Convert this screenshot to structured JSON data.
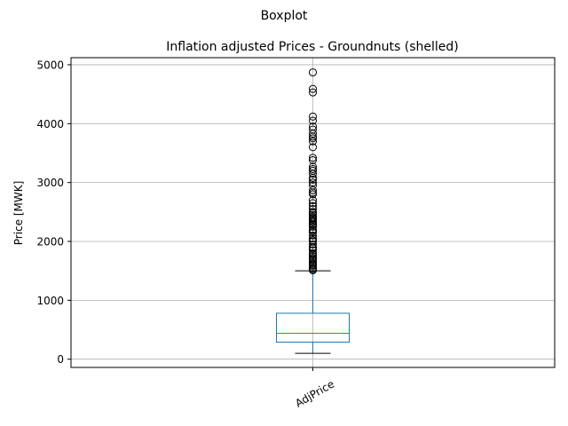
{
  "chart_data": {
    "type": "box",
    "suptitle": "Boxplot",
    "title": "Inflation adjusted Prices - Groundnuts (shelled)",
    "xlabel": "",
    "ylabel": "Price [MWK]",
    "categories": [
      "AdjPrice"
    ],
    "ylim": [
      -140,
      5120
    ],
    "yticks": [
      0,
      1000,
      2000,
      3000,
      4000,
      5000
    ],
    "grid": true,
    "boxes": [
      {
        "name": "AdjPrice",
        "whisker_low": 100,
        "q1": 290,
        "median": 440,
        "q3": 780,
        "whisker_high": 1500,
        "outliers": [
          1510,
          1530,
          1550,
          1580,
          1600,
          1620,
          1650,
          1680,
          1700,
          1720,
          1750,
          1780,
          1800,
          1850,
          1880,
          1900,
          1950,
          2000,
          2020,
          2050,
          2100,
          2150,
          2180,
          2200,
          2250,
          2280,
          2300,
          2330,
          2350,
          2380,
          2400,
          2420,
          2450,
          2480,
          2500,
          2550,
          2600,
          2650,
          2700,
          2800,
          2830,
          2870,
          2950,
          3000,
          3050,
          3080,
          3150,
          3200,
          3230,
          3270,
          3380,
          3420,
          3600,
          3700,
          3750,
          3780,
          3830,
          3900,
          3950,
          4050,
          4120,
          4530,
          4590,
          4870
        ]
      }
    ]
  },
  "colors": {
    "box": "#1f77b4",
    "median": "#2ca02c",
    "whisker_cap": "#000000",
    "outlier": "#000000",
    "grid": "#b0b0b0"
  }
}
